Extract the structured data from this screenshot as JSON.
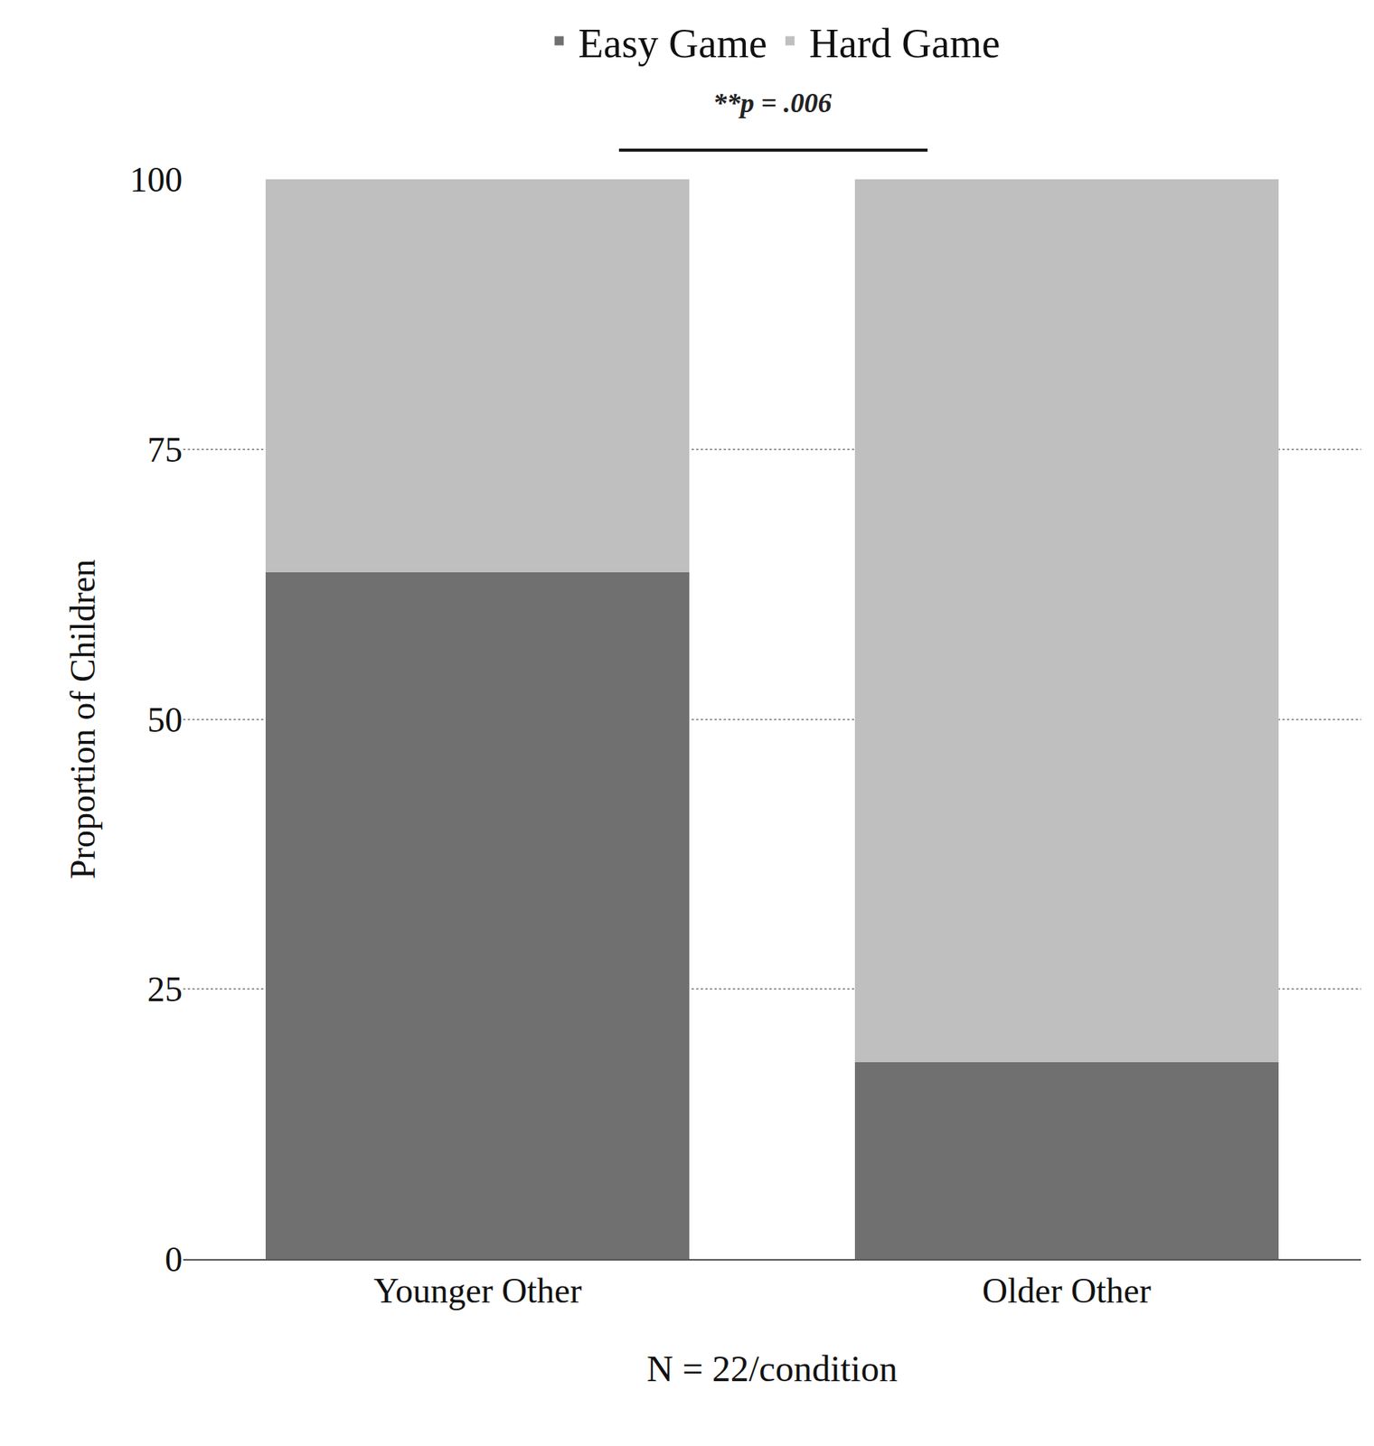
{
  "chart_data": {
    "type": "bar",
    "stacked": true,
    "categories": [
      "Younger Other",
      "Older Other"
    ],
    "series": [
      {
        "name": "Easy Game",
        "color": "#707070",
        "values": [
          63.6,
          18.2
        ]
      },
      {
        "name": "Hard Game",
        "color": "#bfbfbf",
        "values": [
          36.4,
          81.8
        ]
      }
    ],
    "y_label": "Proportion of Children",
    "x_label": "N = 22/condition",
    "annotations": [
      "**p = .006"
    ],
    "ylim": [
      0,
      100
    ],
    "yticks": [
      0,
      25,
      50,
      75,
      100
    ],
    "grid": true,
    "legend": "top"
  }
}
